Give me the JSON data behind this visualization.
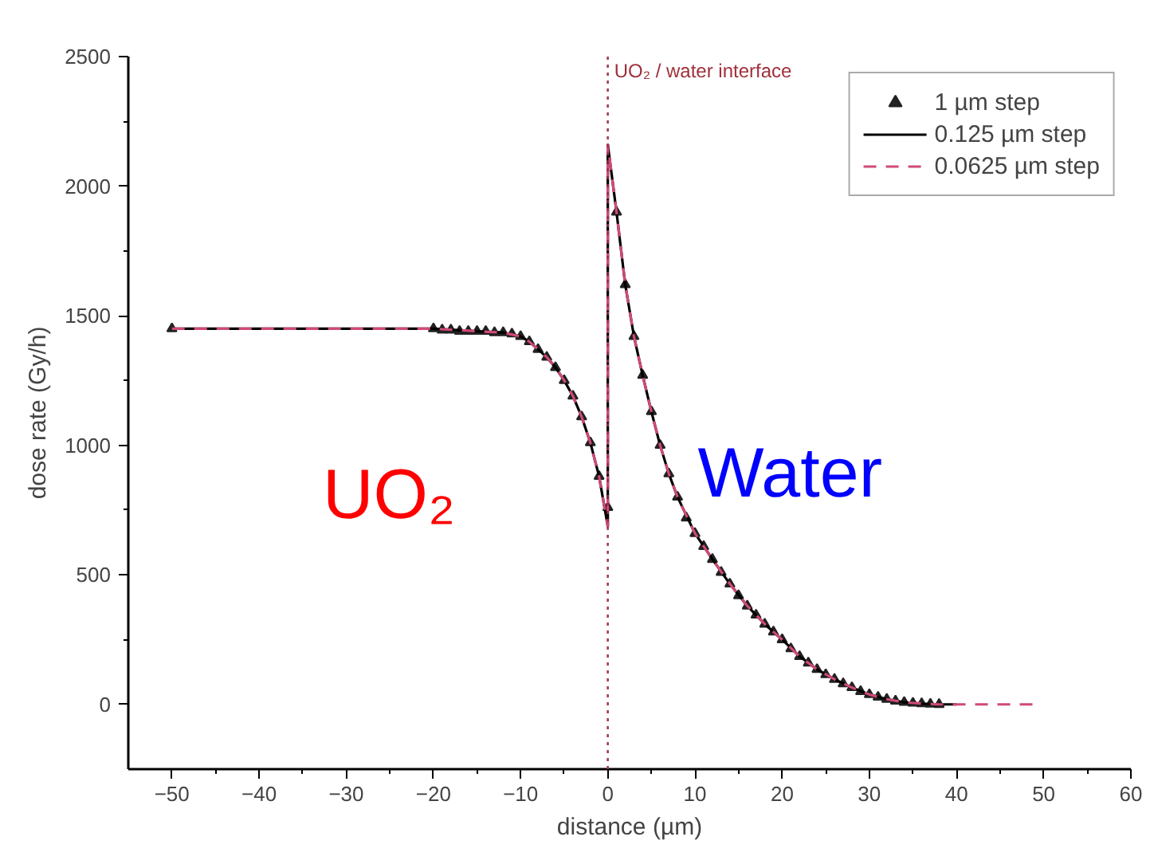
{
  "chart_data": {
    "type": "line",
    "xlabel": "distance (µm)",
    "ylabel": "dose rate (Gy/h)",
    "xlim": [
      -55,
      60
    ],
    "xticks": [
      -50,
      -40,
      -30,
      -20,
      -10,
      0,
      10,
      20,
      30,
      40,
      50,
      60
    ],
    "ylim": [
      -250,
      2500
    ],
    "yticks": [
      0,
      500,
      1000,
      1500,
      2000,
      2500
    ],
    "grid": false,
    "legend": "top right",
    "ref_lines": [
      {
        "axis": "x",
        "value": 0,
        "label": "UO₂ / water interface",
        "color": "#a0303a",
        "line_style": "dotted"
      }
    ],
    "annotations": [
      "UO₂",
      "Water"
    ],
    "series": [
      {
        "name": "1 µm step",
        "type": "scatter",
        "marker": "triangle",
        "color": "#222222",
        "x": [
          -50,
          -20,
          -19,
          -18,
          -17,
          -16,
          -15,
          -14,
          -13,
          -12,
          -11,
          -10,
          -9,
          -8,
          -7,
          -6,
          -5,
          -4,
          -3,
          -2,
          -1,
          0,
          1,
          2,
          3,
          4,
          5,
          6,
          7,
          8,
          9,
          10,
          11,
          12,
          13,
          14,
          15,
          16,
          17,
          18,
          19,
          20,
          21,
          22,
          23,
          24,
          25,
          26,
          27,
          28,
          29,
          30,
          31,
          32,
          33,
          34,
          35,
          36,
          37,
          38
        ],
        "values": [
          1450,
          1450,
          1445,
          1445,
          1440,
          1440,
          1440,
          1440,
          1435,
          1435,
          1430,
          1420,
          1400,
          1370,
          1340,
          1300,
          1250,
          1190,
          1110,
          1010,
          880,
          760,
          1900,
          1620,
          1420,
          1270,
          1130,
          1000,
          890,
          800,
          720,
          660,
          610,
          560,
          510,
          465,
          420,
          380,
          345,
          310,
          280,
          250,
          215,
          185,
          160,
          135,
          115,
          97,
          80,
          65,
          50,
          38,
          28,
          20,
          13,
          8,
          5,
          3,
          1,
          0
        ]
      },
      {
        "name": "0.125 µm step",
        "line_style": "solid",
        "color": "#000000",
        "x": [
          -50,
          -20,
          -15,
          -12,
          -10,
          -9,
          -8,
          -7,
          -6,
          -5,
          -4,
          -3,
          -2,
          -1,
          0,
          0,
          1,
          2,
          3,
          4,
          5,
          6,
          7,
          8,
          10,
          12,
          14,
          16,
          18,
          20,
          22,
          24,
          26,
          28,
          30,
          32,
          34,
          36,
          38,
          40
        ],
        "values": [
          1450,
          1450,
          1440,
          1435,
          1420,
          1400,
          1370,
          1340,
          1300,
          1250,
          1190,
          1110,
          1010,
          880,
          687,
          2160,
          1900,
          1620,
          1420,
          1270,
          1130,
          1000,
          890,
          800,
          660,
          560,
          465,
          380,
          310,
          250,
          185,
          135,
          97,
          65,
          38,
          20,
          8,
          3,
          0,
          0
        ]
      },
      {
        "name": "0.0625 µm step",
        "line_style": "dashed",
        "color": "#d04a78",
        "x": [
          -50,
          -20,
          -15,
          -12,
          -10,
          -9,
          -8,
          -7,
          -6,
          -5,
          -4,
          -3,
          -2,
          -1,
          0,
          0,
          1,
          2,
          3,
          4,
          5,
          6,
          7,
          8,
          10,
          12,
          14,
          16,
          18,
          20,
          22,
          24,
          26,
          28,
          30,
          32,
          34,
          36,
          38,
          40,
          49
        ],
        "values": [
          1450,
          1450,
          1440,
          1435,
          1420,
          1400,
          1370,
          1340,
          1300,
          1250,
          1190,
          1110,
          1010,
          880,
          687,
          2160,
          1900,
          1620,
          1420,
          1270,
          1130,
          1000,
          890,
          800,
          660,
          560,
          465,
          380,
          310,
          250,
          185,
          135,
          97,
          65,
          38,
          20,
          8,
          3,
          0,
          0,
          0
        ]
      }
    ]
  }
}
